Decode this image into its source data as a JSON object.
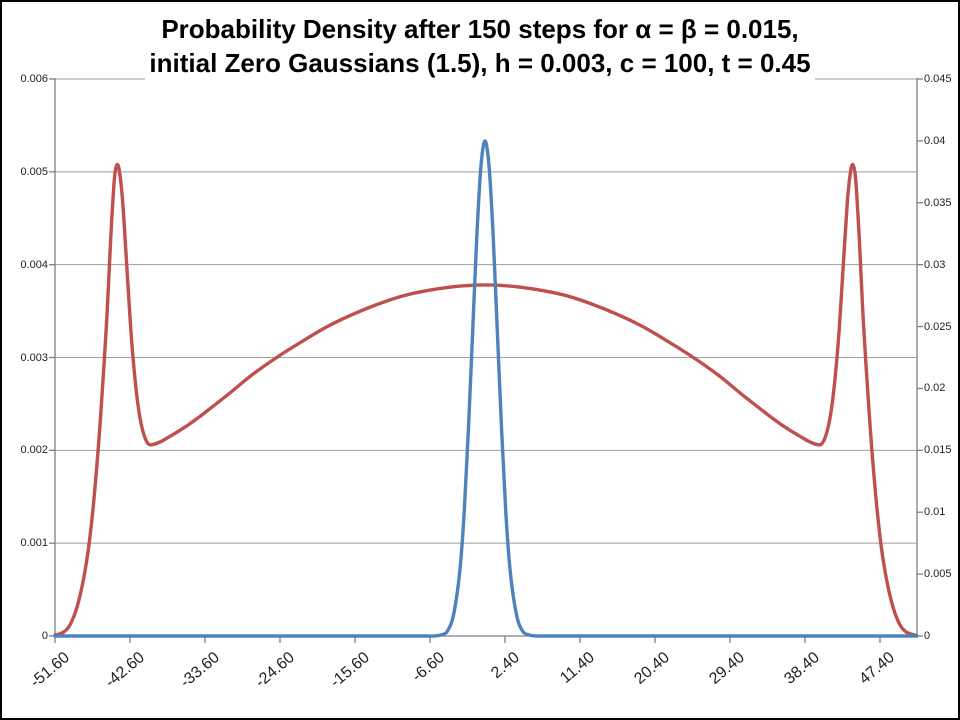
{
  "title": {
    "line1": "Probability Density after 150 steps for α = β = 0.015,",
    "line2": "initial Zero Gaussians (1.5), h = 0.003, c = 100, t = 0.45"
  },
  "colors": {
    "red_series": "#C0504D",
    "blue_series": "#4F81BD",
    "gridline": "#9e9e9e",
    "axis": "#808080",
    "tick_label": "#1f1f1f",
    "title": "#000000"
  },
  "chart_data": {
    "type": "line",
    "title": "Probability Density after 150 steps for α = β = 0.015, initial Zero Gaussians (1.5), h = 0.003, c = 100, t = 0.45",
    "grid": "horizontal gridlines at left-axis steps of 0.001",
    "legend": "none",
    "x_axis": {
      "labels": [
        "-51.60",
        "-42.60",
        "-33.60",
        "-24.60",
        "-15.60",
        "-6.60",
        "2.40",
        "11.40",
        "20.40",
        "29.40",
        "38.40",
        "47.40"
      ],
      "label_values": [
        -51.6,
        -42.6,
        -33.6,
        -24.6,
        -15.6,
        -6.6,
        2.4,
        11.4,
        20.4,
        29.4,
        38.4,
        47.4
      ],
      "range": [
        -51.6,
        51.84
      ],
      "label_rotation_deg": -40
    },
    "y_axis_left": {
      "tick_labels": [
        "0.006",
        "0.005",
        "0.004",
        "0.003",
        "0.002",
        "0.001",
        "0"
      ],
      "tick_values": [
        0.006,
        0.005,
        0.004,
        0.003,
        0.002,
        0.001,
        0
      ],
      "range": [
        0,
        0.006
      ]
    },
    "y_axis_right": {
      "tick_labels": [
        "0.045",
        "0.04",
        "0.035",
        "0.03",
        "0.025",
        "0.02",
        "0.015",
        "0.01",
        "0.005",
        "0"
      ],
      "tick_values": [
        0.045,
        0.04,
        0.035,
        0.03,
        0.025,
        0.02,
        0.015,
        0.01,
        0.005,
        0
      ],
      "range": [
        0,
        0.045
      ]
    },
    "series": [
      {
        "name": "bimodal-density-red",
        "axis": "left",
        "color": "#C0504D",
        "stroke_width": 3.4,
        "points": [
          [
            -51.6,
            1e-05
          ],
          [
            -50.6,
            4e-05
          ],
          [
            -49.8,
            0.00012
          ],
          [
            -49.0,
            0.0003
          ],
          [
            -48.2,
            0.0006
          ],
          [
            -47.5,
            0.001
          ],
          [
            -46.8,
            0.0016
          ],
          [
            -46.1,
            0.0024
          ],
          [
            -45.4,
            0.0034
          ],
          [
            -44.9,
            0.0043
          ],
          [
            -44.5,
            0.0049
          ],
          [
            -44.2,
            0.00507
          ],
          [
            -43.9,
            0.00502
          ],
          [
            -43.5,
            0.0047
          ],
          [
            -43.0,
            0.004
          ],
          [
            -42.5,
            0.0033
          ],
          [
            -42.0,
            0.00277
          ],
          [
            -41.5,
            0.0024
          ],
          [
            -41.0,
            0.00219
          ],
          [
            -40.5,
            0.00208
          ],
          [
            -40.0,
            0.00206
          ],
          [
            -39.0,
            0.00209
          ],
          [
            -38.0,
            0.00214
          ],
          [
            -36.0,
            0.00225
          ],
          [
            -34.0,
            0.00238
          ],
          [
            -31.0,
            0.00259
          ],
          [
            -28.0,
            0.00281
          ],
          [
            -25.0,
            0.003
          ],
          [
            -22.0,
            0.00317
          ],
          [
            -19.0,
            0.00333
          ],
          [
            -16.0,
            0.00346
          ],
          [
            -13.0,
            0.00357
          ],
          [
            -10.0,
            0.00366
          ],
          [
            -7.0,
            0.00372
          ],
          [
            -4.0,
            0.00376
          ],
          [
            -1.0,
            0.00378
          ],
          [
            1.0,
            0.00378
          ],
          [
            4.0,
            0.00376
          ],
          [
            7.0,
            0.00372
          ],
          [
            10.0,
            0.00366
          ],
          [
            13.0,
            0.00357
          ],
          [
            16.0,
            0.00346
          ],
          [
            19.0,
            0.00333
          ],
          [
            22.0,
            0.00317
          ],
          [
            25.0,
            0.003
          ],
          [
            28.0,
            0.00281
          ],
          [
            31.0,
            0.00259
          ],
          [
            34.0,
            0.00238
          ],
          [
            36.0,
            0.00225
          ],
          [
            38.0,
            0.00214
          ],
          [
            39.0,
            0.00209
          ],
          [
            40.0,
            0.00206
          ],
          [
            40.5,
            0.00208
          ],
          [
            41.0,
            0.00219
          ],
          [
            41.5,
            0.0024
          ],
          [
            42.0,
            0.00277
          ],
          [
            42.5,
            0.0033
          ],
          [
            43.0,
            0.004
          ],
          [
            43.5,
            0.0047
          ],
          [
            43.9,
            0.00502
          ],
          [
            44.2,
            0.00507
          ],
          [
            44.5,
            0.0049
          ],
          [
            44.9,
            0.0043
          ],
          [
            45.4,
            0.0034
          ],
          [
            46.1,
            0.0024
          ],
          [
            46.8,
            0.0016
          ],
          [
            47.5,
            0.001
          ],
          [
            48.2,
            0.0006
          ],
          [
            49.0,
            0.0003
          ],
          [
            49.8,
            0.00012
          ],
          [
            50.6,
            4e-05
          ],
          [
            51.6,
            1e-05
          ]
        ]
      },
      {
        "name": "narrow-gaussian-blue",
        "axis": "right",
        "color": "#4F81BD",
        "stroke_width": 3.4,
        "points": [
          [
            -51.6,
            0
          ],
          [
            -45,
            0
          ],
          [
            -40,
            0
          ],
          [
            -35,
            0
          ],
          [
            -30,
            0
          ],
          [
            -25,
            0
          ],
          [
            -20,
            0
          ],
          [
            -15,
            0
          ],
          [
            -10,
            0
          ],
          [
            -7,
            0
          ],
          [
            -6.0,
            1e-05
          ],
          [
            -5.25,
            0.0001
          ],
          [
            -4.5,
            0.0004
          ],
          [
            -3.75,
            0.0018
          ],
          [
            -3.0,
            0.0054
          ],
          [
            -2.5,
            0.01
          ],
          [
            -2.0,
            0.0165
          ],
          [
            -1.5,
            0.0243
          ],
          [
            -1.0,
            0.0321
          ],
          [
            -0.5,
            0.0378
          ],
          [
            0,
            0.04
          ],
          [
            0.5,
            0.0378
          ],
          [
            1.0,
            0.0321
          ],
          [
            1.5,
            0.0243
          ],
          [
            2.0,
            0.0165
          ],
          [
            2.5,
            0.01
          ],
          [
            3.0,
            0.0054
          ],
          [
            3.75,
            0.0018
          ],
          [
            4.5,
            0.0004
          ],
          [
            5.25,
            0.0001
          ],
          [
            6.0,
            1e-05
          ],
          [
            7,
            0
          ],
          [
            10,
            0
          ],
          [
            15,
            0
          ],
          [
            20,
            0
          ],
          [
            25,
            0
          ],
          [
            30,
            0
          ],
          [
            35,
            0
          ],
          [
            40,
            0
          ],
          [
            45,
            0
          ],
          [
            51.84,
            0
          ]
        ]
      }
    ]
  }
}
